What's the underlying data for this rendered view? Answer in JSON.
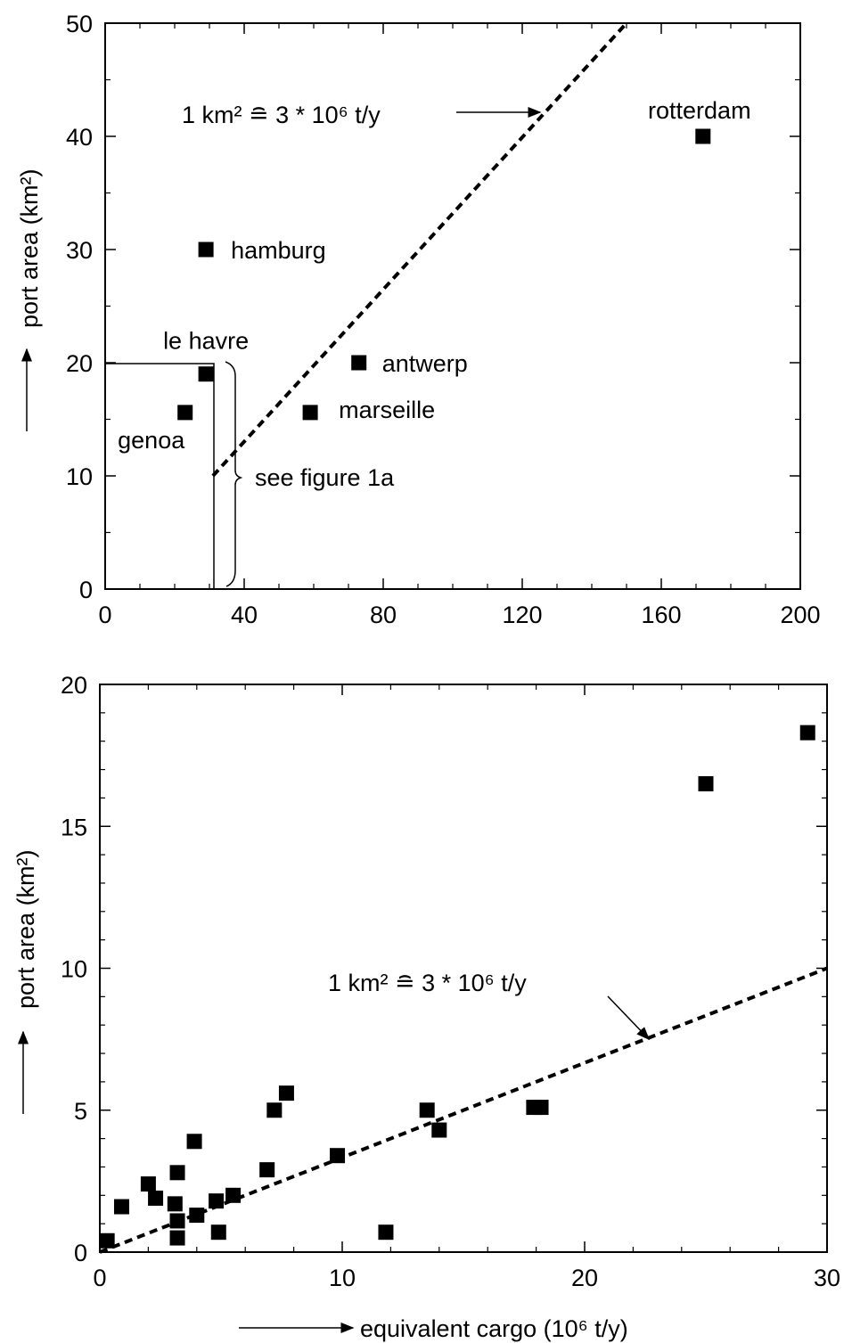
{
  "chart_data": [
    {
      "type": "scatter",
      "xlim": [
        0,
        200
      ],
      "ylim": [
        0,
        50
      ],
      "xticks": [
        "0",
        "40",
        "80",
        "120",
        "160",
        "200"
      ],
      "yticks": [
        "0",
        "10",
        "20",
        "30",
        "40",
        "50"
      ],
      "ylabel": "port area (km²)",
      "xlabel": "",
      "points": [
        {
          "name": "rotterdam",
          "x": 172,
          "y": 40
        },
        {
          "name": "hamburg",
          "x": 29,
          "y": 30
        },
        {
          "name": "le havre",
          "x": 29,
          "y": 19
        },
        {
          "name": "genoa",
          "x": 23,
          "y": 15.6
        },
        {
          "name": "antwerp",
          "x": 73,
          "y": 20
        },
        {
          "name": "marseille",
          "x": 59,
          "y": 15.6
        }
      ],
      "trend_line": {
        "label": "1 km² ≘ 3 * 10⁶ t/y",
        "x": [
          31,
          150
        ],
        "y": [
          10,
          50
        ]
      },
      "annotation": "see figure 1a"
    },
    {
      "type": "scatter",
      "xlim": [
        0,
        30
      ],
      "ylim": [
        0,
        20
      ],
      "xticks": [
        "0",
        "10",
        "20",
        "30"
      ],
      "yticks": [
        "0",
        "5",
        "10",
        "15",
        "20"
      ],
      "ylabel": "port area (km²)",
      "xlabel": "equivalent cargo (10⁶ t/y)",
      "points": [
        {
          "x": 0.3,
          "y": 0.4
        },
        {
          "x": 0.9,
          "y": 1.6
        },
        {
          "x": 2.0,
          "y": 2.4
        },
        {
          "x": 2.3,
          "y": 1.9
        },
        {
          "x": 3.1,
          "y": 1.7
        },
        {
          "x": 3.2,
          "y": 2.8
        },
        {
          "x": 3.2,
          "y": 1.1
        },
        {
          "x": 3.2,
          "y": 0.5
        },
        {
          "x": 3.9,
          "y": 3.9
        },
        {
          "x": 4.0,
          "y": 1.3
        },
        {
          "x": 4.8,
          "y": 1.8
        },
        {
          "x": 4.9,
          "y": 0.7
        },
        {
          "x": 5.5,
          "y": 2.0
        },
        {
          "x": 6.9,
          "y": 2.9
        },
        {
          "x": 7.2,
          "y": 5.0
        },
        {
          "x": 7.7,
          "y": 5.6
        },
        {
          "x": 9.8,
          "y": 3.4
        },
        {
          "x": 11.8,
          "y": 0.7
        },
        {
          "x": 13.5,
          "y": 5.0
        },
        {
          "x": 14.0,
          "y": 4.3
        },
        {
          "x": 17.9,
          "y": 5.1
        },
        {
          "x": 18.2,
          "y": 5.1
        },
        {
          "x": 25.0,
          "y": 16.5
        },
        {
          "x": 29.2,
          "y": 18.3
        }
      ],
      "trend_line": {
        "label": "1 km² ≘ 3 * 10⁶ t/y",
        "x": [
          0,
          30
        ],
        "y": [
          0,
          10
        ]
      }
    }
  ]
}
